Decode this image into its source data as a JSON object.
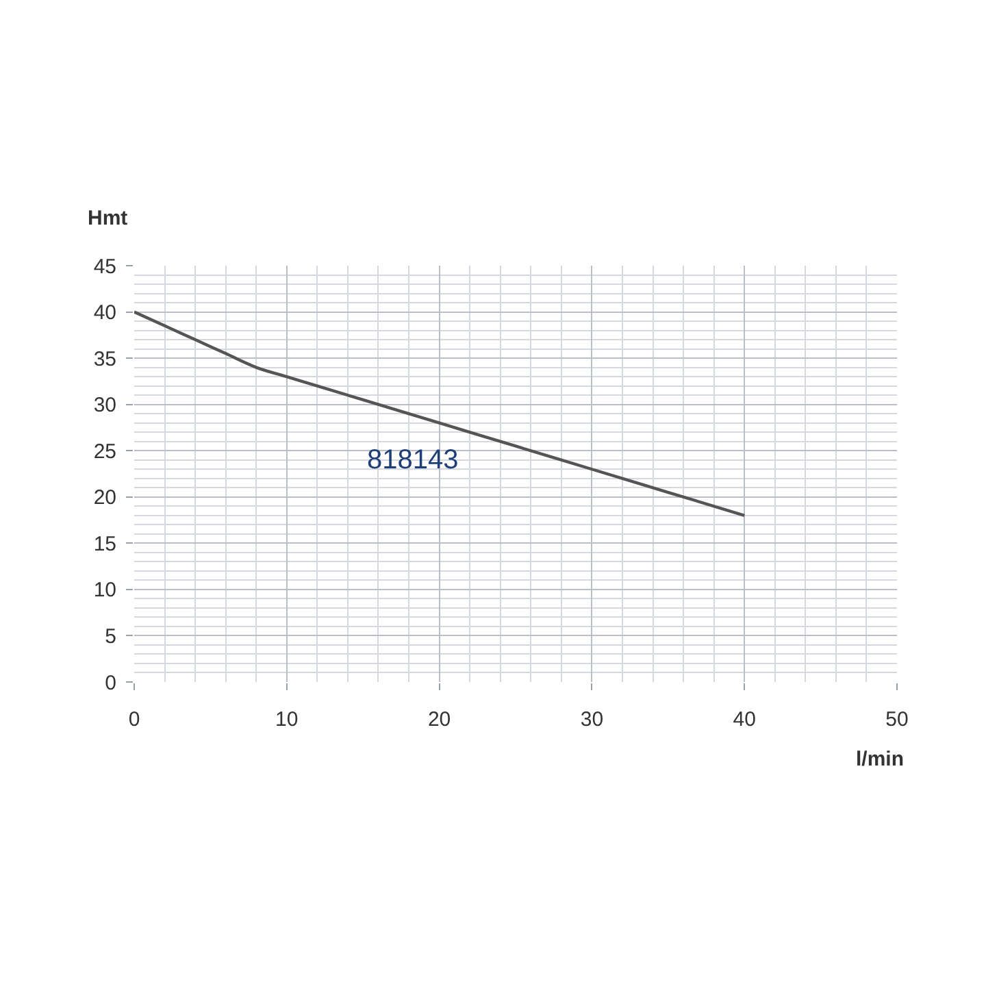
{
  "chart_data": {
    "type": "line",
    "xlabel": "l/min",
    "ylabel": "Hmt",
    "x": [
      0,
      2,
      4,
      6,
      8,
      10,
      12,
      15,
      20,
      25,
      30,
      35,
      40
    ],
    "series": [
      {
        "name": "818143",
        "color": "#555555",
        "values": [
          40,
          38.5,
          37,
          35.5,
          34,
          33,
          32,
          30.5,
          28,
          25.5,
          23,
          20.5,
          18
        ]
      }
    ],
    "xlim": [
      0,
      50
    ],
    "xticks": [
      0,
      {
        "value": 2,
        "label": null
      },
      {
        "value": 4,
        "label": null
      },
      {
        "value": 6,
        "label": null
      },
      {
        "value": 8,
        "label": null
      },
      10,
      {
        "value": 12,
        "label": null
      },
      {
        "value": 14,
        "label": null
      },
      {
        "value": 16,
        "label": null
      },
      {
        "value": 18,
        "label": null
      },
      20,
      {
        "value": 22,
        "label": null
      },
      {
        "value": 24,
        "label": null
      },
      {
        "value": 26,
        "label": null
      },
      {
        "value": 28,
        "label": null
      },
      30,
      {
        "value": 32,
        "label": null
      },
      {
        "value": 34,
        "label": null
      },
      {
        "value": 36,
        "label": null
      },
      {
        "value": 38,
        "label": null
      },
      40,
      {
        "value": 42,
        "label": null
      },
      {
        "value": 44,
        "label": null
      },
      {
        "value": 46,
        "label": null
      },
      {
        "value": 48,
        "label": null
      },
      50
    ],
    "ylim": [
      0,
      45
    ],
    "yticks": [
      0,
      {
        "value": 1,
        "label": null
      },
      {
        "value": 2,
        "label": null
      },
      {
        "value": 3,
        "label": null
      },
      {
        "value": 4,
        "label": null
      },
      5,
      {
        "value": 6,
        "label": null
      },
      {
        "value": 7,
        "label": null
      },
      {
        "value": 8,
        "label": null
      },
      {
        "value": 9,
        "label": null
      },
      10,
      {
        "value": 11,
        "label": null
      },
      {
        "value": 12,
        "label": null
      },
      {
        "value": 13,
        "label": null
      },
      {
        "value": 14,
        "label": null
      },
      15,
      {
        "value": 16,
        "label": null
      },
      {
        "value": 17,
        "label": null
      },
      {
        "value": 18,
        "label": null
      },
      {
        "value": 19,
        "label": null
      },
      20,
      {
        "value": 21,
        "label": null
      },
      {
        "value": 22,
        "label": null
      },
      {
        "value": 23,
        "label": null
      },
      {
        "value": 24,
        "label": null
      },
      25,
      {
        "value": 26,
        "label": null
      },
      {
        "value": 27,
        "label": null
      },
      {
        "value": 28,
        "label": null
      },
      {
        "value": 29,
        "label": null
      },
      30,
      {
        "value": 31,
        "label": null
      },
      {
        "value": 32,
        "label": null
      },
      {
        "value": 33,
        "label": null
      },
      {
        "value": 34,
        "label": null
      },
      35,
      {
        "value": 36,
        "label": null
      },
      {
        "value": 37,
        "label": null
      },
      {
        "value": 38,
        "label": null
      },
      {
        "value": 39,
        "label": null
      },
      40,
      {
        "value": 41,
        "label": null
      },
      {
        "value": 42,
        "label": null
      },
      {
        "value": 43,
        "label": null
      },
      {
        "value": 44,
        "label": null
      },
      45
    ],
    "grid": true,
    "legend": false,
    "marker": "none",
    "line_style": "solid"
  }
}
